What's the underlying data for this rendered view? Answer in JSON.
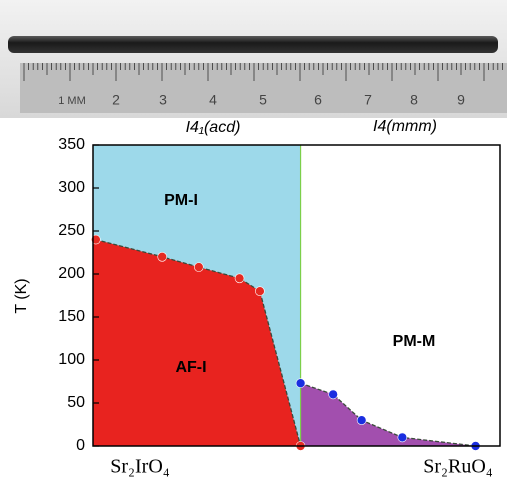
{
  "photo": {
    "ruler_labels": [
      "1 MM",
      "2",
      "3",
      "4",
      "5",
      "6",
      "7",
      "8",
      "9"
    ]
  },
  "chart_data": {
    "type": "scatter",
    "phase_labels": [
      "I4₁(acd)",
      "I4(mmm)"
    ],
    "ylabel": "T (K)",
    "x_end_labels": [
      "Sr₂IrO₄",
      "Sr₂RuO₄"
    ],
    "region_labels": [
      "PM-I",
      "AF-I",
      "PM-M"
    ],
    "xlim": [
      0,
      1
    ],
    "ylim": [
      0,
      350
    ],
    "yticks": [
      0,
      50,
      100,
      150,
      200,
      250,
      300,
      350
    ],
    "series": [
      {
        "color": "#e52a22",
        "x": [
          0.007,
          0.17,
          0.26,
          0.36,
          0.41,
          0.51
        ],
        "values": [
          240,
          220,
          208,
          195,
          180,
          0
        ]
      },
      {
        "color": "#1a2ee0",
        "x": [
          0.51,
          0.59,
          0.66,
          0.76,
          0.94
        ],
        "values": [
          73,
          60,
          30,
          10,
          0
        ]
      }
    ]
  }
}
